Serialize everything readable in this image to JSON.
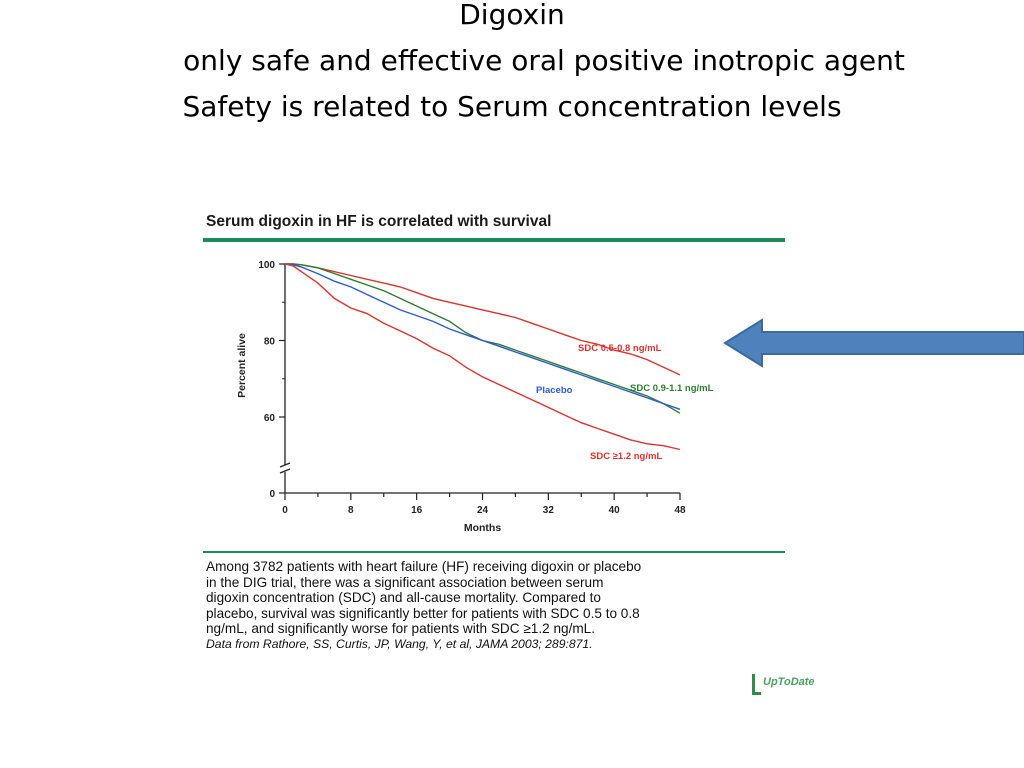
{
  "slide": {
    "title_lines": [
      "Digoxin",
      "only safe and effective oral positive inotropic agent",
      "Safety is related to Serum concentration levels"
    ]
  },
  "figure": {
    "heading": "Serum digoxin in HF is correlated with survival",
    "caption_lines": [
      "Among 3782 patients with heart failure (HF) receiving digoxin or placebo",
      "in the DIG trial, there was a significant association between serum",
      "digoxin concentration (SDC) and all-cause mortality. Compared to",
      "placebo, survival was significantly better for patients with SDC 0.5 to 0.8",
      "ng/mL, and significantly worse for patients with SDC ≥1.2 ng/mL."
    ],
    "citation": "Data from Rathore, SS, Curtis, JP, Wang, Y, et al, JAMA 2003; 289:871.",
    "logo_text": "UpToDate"
  },
  "colors": {
    "accent": "#1d8a5e",
    "sdc_low": "#e0312b",
    "sdc_mid": "#2e7d32",
    "sdc_high": "#e0312b",
    "placebo": "#2a5bd7",
    "arrow": "#4f81bd"
  },
  "chart_data": {
    "type": "line",
    "title": "Serum digoxin in HF is correlated with survival",
    "xlabel": "Months",
    "ylabel": "Percent alive",
    "xlim": [
      0,
      48
    ],
    "ylim": [
      0,
      100
    ],
    "axis_break": true,
    "x_ticks": [
      0,
      8,
      16,
      24,
      32,
      40,
      48
    ],
    "y_ticks": [
      0,
      60,
      80,
      100
    ],
    "grid": false,
    "series": [
      {
        "name": "SDC 0.5-0.8 ng/mL",
        "color": "#e0312b",
        "x": [
          0,
          1,
          2,
          4,
          6,
          8,
          10,
          12,
          14,
          16,
          18,
          20,
          22,
          24,
          26,
          28,
          30,
          32,
          34,
          36,
          38,
          40,
          42,
          44,
          46,
          48
        ],
        "y": [
          100,
          100,
          99.8,
          99,
          98,
          97,
          96,
          95,
          94,
          92.5,
          91,
          90,
          89,
          88,
          87,
          86,
          84.5,
          83,
          81.5,
          80,
          79,
          77.5,
          76.5,
          75,
          73,
          71
        ]
      },
      {
        "name": "SDC 0.9-1.1 ng/mL",
        "color": "#2e7d32",
        "x": [
          0,
          1,
          2,
          4,
          6,
          8,
          10,
          12,
          14,
          16,
          18,
          20,
          22,
          24,
          26,
          28,
          30,
          32,
          34,
          36,
          38,
          40,
          42,
          44,
          46,
          48
        ],
        "y": [
          100,
          100,
          99.8,
          99,
          97.5,
          96,
          94.5,
          93,
          91,
          89,
          87,
          85,
          82,
          80,
          79,
          77.5,
          76,
          74.5,
          73,
          71.5,
          70,
          68.5,
          67,
          65.5,
          63.5,
          61
        ]
      },
      {
        "name": "Placebo",
        "color": "#2a5bd7",
        "x": [
          0,
          1,
          2,
          4,
          6,
          8,
          10,
          12,
          14,
          16,
          18,
          20,
          22,
          24,
          26,
          28,
          30,
          32,
          34,
          36,
          38,
          40,
          42,
          44,
          46,
          48
        ],
        "y": [
          100,
          99.8,
          99.2,
          97.5,
          95.5,
          94,
          92,
          90,
          88,
          86.5,
          85,
          83,
          81.5,
          80,
          78.5,
          77,
          75.5,
          74,
          72.5,
          71,
          69.5,
          68,
          66.5,
          65,
          63.5,
          62
        ]
      },
      {
        "name": "SDC ≥1.2 ng/mL",
        "color": "#e0312b",
        "x": [
          0,
          1,
          2,
          4,
          6,
          8,
          10,
          12,
          14,
          16,
          18,
          20,
          22,
          24,
          26,
          28,
          30,
          32,
          34,
          36,
          38,
          40,
          42,
          44,
          46,
          48
        ],
        "y": [
          100,
          99.5,
          98,
          95,
          91,
          88.5,
          87,
          84.5,
          82.5,
          80.5,
          78,
          76,
          73,
          70.5,
          68.5,
          66.5,
          64.5,
          62.5,
          60.5,
          58.5,
          57,
          55.5,
          54,
          53,
          52.5,
          51.5
        ]
      }
    ]
  }
}
